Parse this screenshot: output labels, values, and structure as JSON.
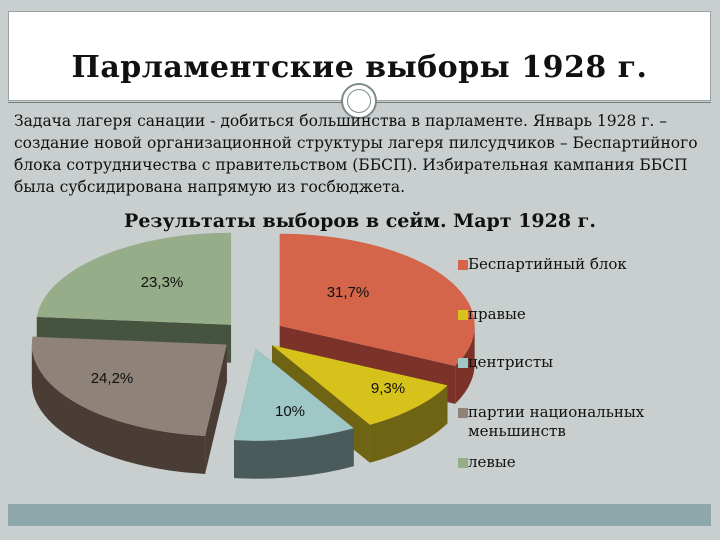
{
  "slide": {
    "title": "Парламентские выборы 1928 г.",
    "paragraph": "Задача лагеря санации - добиться большинства в парламенте. Январь 1928 г. – создание новой организационной структуры лагеря пилсудчиков – Беспартийного блока сотрудничества с правительством (ББСП). Избирательная кампания ББСП была субсидирована напрямую из госбюджета.",
    "subtitle": "Результаты выборов в сейм. Март 1928 г."
  },
  "chart_data": {
    "type": "pie",
    "title": "Результаты выборов в сейм. Март 1928 г.",
    "style": "3d-exploded",
    "legend_position": "right",
    "slices": [
      {
        "name": "Беспартийный блок",
        "value": 31.7,
        "label": "31,7%",
        "color": "#d4644a",
        "side_color": "#7b3329"
      },
      {
        "name": "правые",
        "value": 9.3,
        "label": "9,3%",
        "color": "#d6c21a",
        "side_color": "#6f6314"
      },
      {
        "name": "центристы",
        "value": 10,
        "label": "10%",
        "color": "#9ec7c6",
        "side_color": "#4a5b5b"
      },
      {
        "name": "партии национальных меньшинств",
        "value": 24.2,
        "label": "24,2%",
        "color": "#8f8278",
        "side_color": "#4a3d36"
      },
      {
        "name": "левые",
        "value": 23.3,
        "label": "23,3%",
        "color": "#96ad8a",
        "side_color": "#46533f"
      }
    ]
  }
}
